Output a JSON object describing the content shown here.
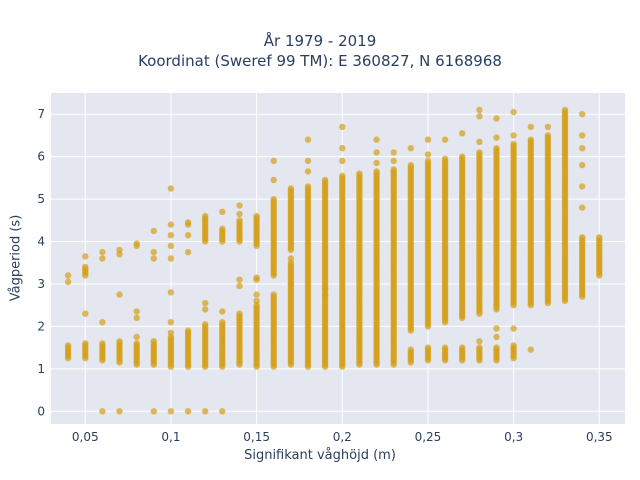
{
  "chart_data": {
    "type": "scatter",
    "title_lines": [
      "År 1979 - 2019",
      "Koordinat (Sweref 99 TM): E 360827, N 6168968"
    ],
    "xlabel": "Signifikant våghöjd (m)",
    "ylabel": "Vågperiod (s)",
    "xlim": [
      0.03,
      0.365
    ],
    "ylim": [
      -0.3,
      7.5
    ],
    "x_ticks": [
      0.05,
      0.1,
      0.15,
      0.2,
      0.25,
      0.3,
      0.35
    ],
    "x_tick_labels": [
      "0,05",
      "0,1",
      "0,15",
      "0,2",
      "0,25",
      "0,3",
      "0,35"
    ],
    "y_ticks": [
      0,
      1,
      2,
      3,
      4,
      5,
      6,
      7
    ],
    "y_tick_labels": [
      "0",
      "1",
      "2",
      "3",
      "4",
      "5",
      "6",
      "7"
    ],
    "grid": true,
    "marker_color": "#d4a017",
    "background_color": "#e5e7f0",
    "columns": [
      {
        "x": 0.04,
        "ranges": [
          [
            1.25,
            1.55
          ]
        ],
        "points": [
          3.05,
          3.2
        ]
      },
      {
        "x": 0.05,
        "ranges": [
          [
            1.25,
            1.6
          ],
          [
            3.2,
            3.4
          ]
        ],
        "points": [
          2.3,
          3.65
        ]
      },
      {
        "x": 0.06,
        "ranges": [
          [
            1.2,
            1.6
          ]
        ],
        "points": [
          0,
          2.1,
          3.6,
          3.75
        ]
      },
      {
        "x": 0.07,
        "ranges": [
          [
            1.15,
            1.65
          ]
        ],
        "points": [
          0,
          2.75,
          3.7,
          3.8
        ]
      },
      {
        "x": 0.08,
        "ranges": [
          [
            1.1,
            1.6
          ]
        ],
        "points": [
          1.75,
          2.2,
          2.35,
          3.9,
          3.95
        ]
      },
      {
        "x": 0.09,
        "ranges": [
          [
            1.1,
            1.65
          ]
        ],
        "points": [
          0,
          3.6,
          3.75,
          4.25
        ]
      },
      {
        "x": 0.1,
        "ranges": [
          [
            1.05,
            1.75
          ]
        ],
        "points": [
          0,
          1.85,
          2.1,
          2.8,
          3.6,
          3.9,
          4.15,
          4.4,
          5.25
        ]
      },
      {
        "x": 0.11,
        "ranges": [
          [
            1.05,
            1.9
          ]
        ],
        "points": [
          0,
          3.75,
          4.15,
          4.4,
          4.45
        ]
      },
      {
        "x": 0.12,
        "ranges": [
          [
            1.05,
            2.05
          ],
          [
            4.0,
            4.6
          ]
        ],
        "points": [
          0,
          2.4,
          2.55
        ]
      },
      {
        "x": 0.13,
        "ranges": [
          [
            1.05,
            2.1
          ],
          [
            4.0,
            4.3
          ]
        ],
        "points": [
          0,
          2.35,
          4.7
        ]
      },
      {
        "x": 0.14,
        "ranges": [
          [
            1.1,
            2.3
          ],
          [
            4.0,
            4.5
          ]
        ],
        "points": [
          2.95,
          3.1,
          4.65,
          4.85
        ]
      },
      {
        "x": 0.15,
        "ranges": [
          [
            1.05,
            2.5
          ],
          [
            3.9,
            4.6
          ]
        ],
        "points": [
          2.6,
          2.75,
          3.1,
          3.15
        ]
      },
      {
        "x": 0.16,
        "ranges": [
          [
            1.05,
            2.75
          ],
          [
            3.2,
            5.0
          ]
        ],
        "points": [
          5.45,
          5.9
        ]
      },
      {
        "x": 0.17,
        "ranges": [
          [
            1.1,
            3.5
          ],
          [
            3.8,
            5.25
          ]
        ],
        "points": [
          3.0,
          3.6
        ]
      },
      {
        "x": 0.18,
        "ranges": [
          [
            1.05,
            5.3
          ]
        ],
        "points": [
          5.65,
          5.9,
          6.4
        ]
      },
      {
        "x": 0.19,
        "ranges": [
          [
            1.05,
            5.45
          ]
        ],
        "points": [
          2.75,
          2.9
        ]
      },
      {
        "x": 0.2,
        "ranges": [
          [
            1.05,
            5.55
          ]
        ],
        "points": [
          5.9,
          6.2,
          6.7
        ]
      },
      {
        "x": 0.21,
        "ranges": [
          [
            1.1,
            5.6
          ]
        ],
        "points": []
      },
      {
        "x": 0.22,
        "ranges": [
          [
            1.1,
            5.65
          ]
        ],
        "points": [
          5.85,
          6.1,
          6.4
        ]
      },
      {
        "x": 0.23,
        "ranges": [
          [
            1.1,
            5.7
          ]
        ],
        "points": [
          5.9,
          6.1
        ]
      },
      {
        "x": 0.24,
        "ranges": [
          [
            1.15,
            1.45
          ],
          [
            1.9,
            5.8
          ]
        ],
        "points": [
          6.2
        ]
      },
      {
        "x": 0.25,
        "ranges": [
          [
            1.2,
            1.5
          ],
          [
            2.0,
            5.9
          ]
        ],
        "points": [
          6.05,
          6.4
        ]
      },
      {
        "x": 0.26,
        "ranges": [
          [
            1.2,
            1.5
          ],
          [
            2.1,
            5.95
          ]
        ],
        "points": [
          6.4
        ]
      },
      {
        "x": 0.27,
        "ranges": [
          [
            1.2,
            1.5
          ],
          [
            2.2,
            6.0
          ]
        ],
        "points": [
          6.55
        ]
      },
      {
        "x": 0.28,
        "ranges": [
          [
            1.2,
            1.5
          ],
          [
            2.3,
            6.1
          ]
        ],
        "points": [
          1.65,
          6.35,
          6.95,
          7.1
        ]
      },
      {
        "x": 0.29,
        "ranges": [
          [
            1.2,
            1.5
          ],
          [
            2.4,
            6.2
          ]
        ],
        "points": [
          1.75,
          1.95,
          6.45,
          6.9
        ]
      },
      {
        "x": 0.3,
        "ranges": [
          [
            1.25,
            1.55
          ],
          [
            2.5,
            6.3
          ]
        ],
        "points": [
          1.95,
          6.5,
          7.05
        ]
      },
      {
        "x": 0.31,
        "ranges": [
          [
            2.5,
            6.4
          ]
        ],
        "points": [
          1.45,
          6.7
        ]
      },
      {
        "x": 0.32,
        "ranges": [
          [
            2.55,
            6.5
          ]
        ],
        "points": [
          6.7
        ]
      },
      {
        "x": 0.33,
        "ranges": [
          [
            2.6,
            7.1
          ]
        ],
        "points": []
      },
      {
        "x": 0.34,
        "ranges": [
          [
            2.7,
            4.1
          ]
        ],
        "points": [
          4.8,
          5.3,
          5.8,
          6.2,
          6.5,
          7.0
        ]
      },
      {
        "x": 0.35,
        "ranges": [
          [
            3.2,
            4.1
          ]
        ],
        "points": []
      }
    ]
  }
}
